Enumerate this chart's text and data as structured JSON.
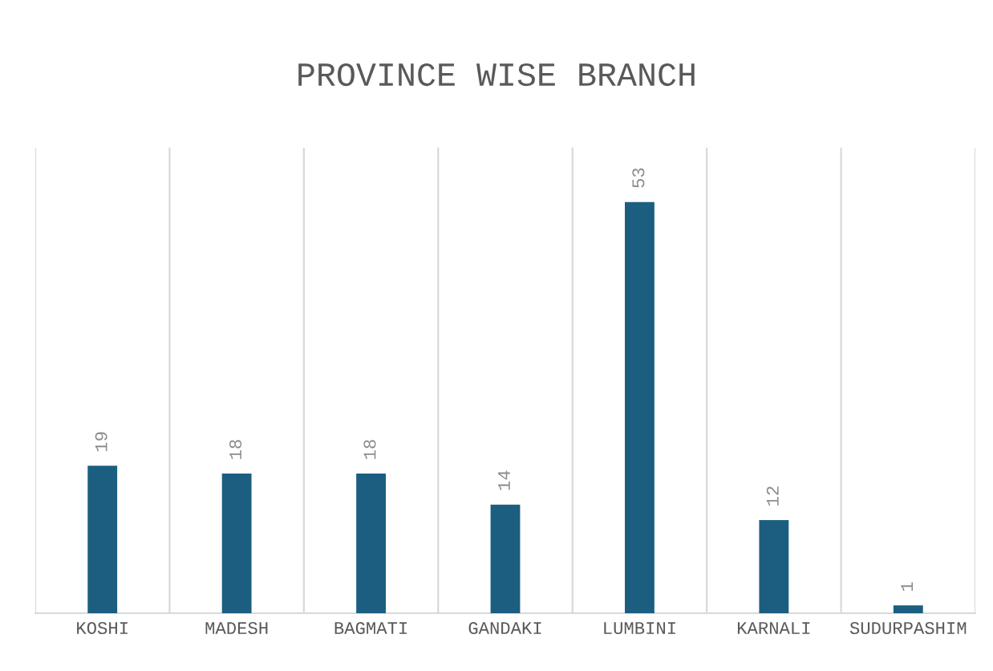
{
  "chart_data": {
    "type": "bar",
    "title": "PROVINCE WISE BRANCH",
    "categories": [
      "KOSHI",
      "MADESH",
      "BAGMATI",
      "GANDAKI",
      "LUMBINI",
      "KARNALI",
      "SUDURPASHIM"
    ],
    "values": [
      19,
      18,
      18,
      14,
      53,
      12,
      1
    ],
    "color": "#1b5e80",
    "ylim": [
      0,
      60
    ],
    "data_labels": true,
    "grid": "x",
    "tick_labels": "x"
  }
}
